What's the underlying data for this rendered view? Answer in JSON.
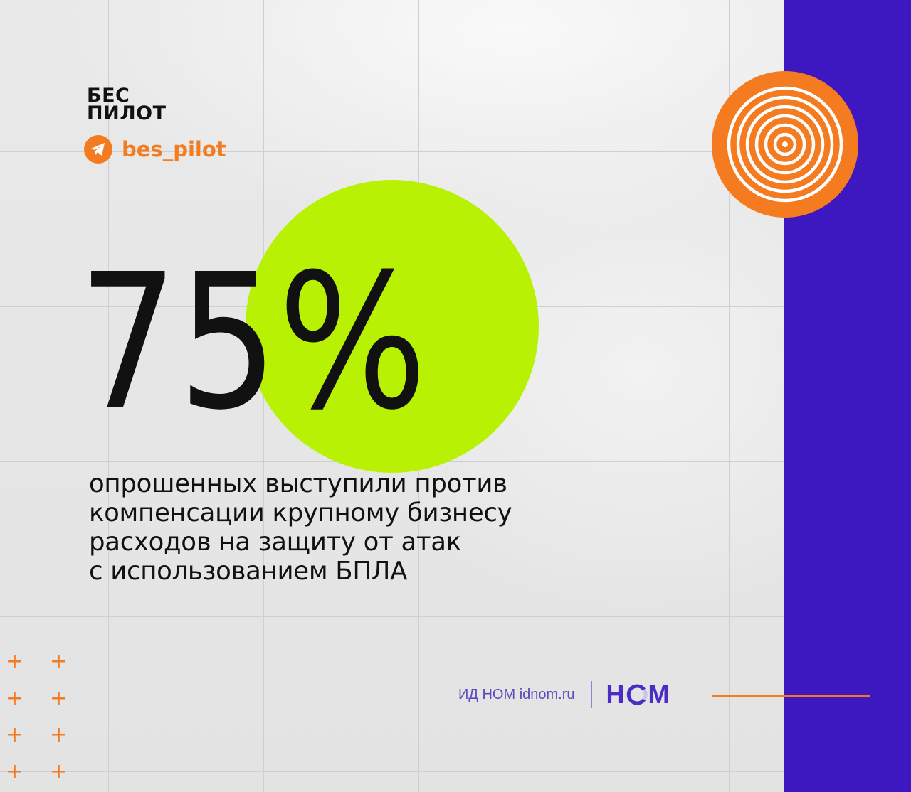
{
  "brand": {
    "line1": "БЕС",
    "line2": "ПИЛОТ",
    "telegram_handle": "bes_pilot",
    "telegram_icon": "telegram-icon"
  },
  "stat": {
    "number": "75",
    "percent_sign": "%",
    "caption_lines": [
      "опрошенных выступили против",
      "компенсации крупному бизнесу",
      "расходов на защиту от атак",
      "с использованием БПЛА"
    ]
  },
  "footer": {
    "publisher": "ИД НОМ idnom.ru",
    "logo_text_1": "Н",
    "logo_text_2": "М"
  },
  "colors": {
    "accent_orange": "#f47b1f",
    "accent_green": "#b8f104",
    "band_purple": "#3d18c0",
    "logo_purple": "#4a2ec4"
  }
}
